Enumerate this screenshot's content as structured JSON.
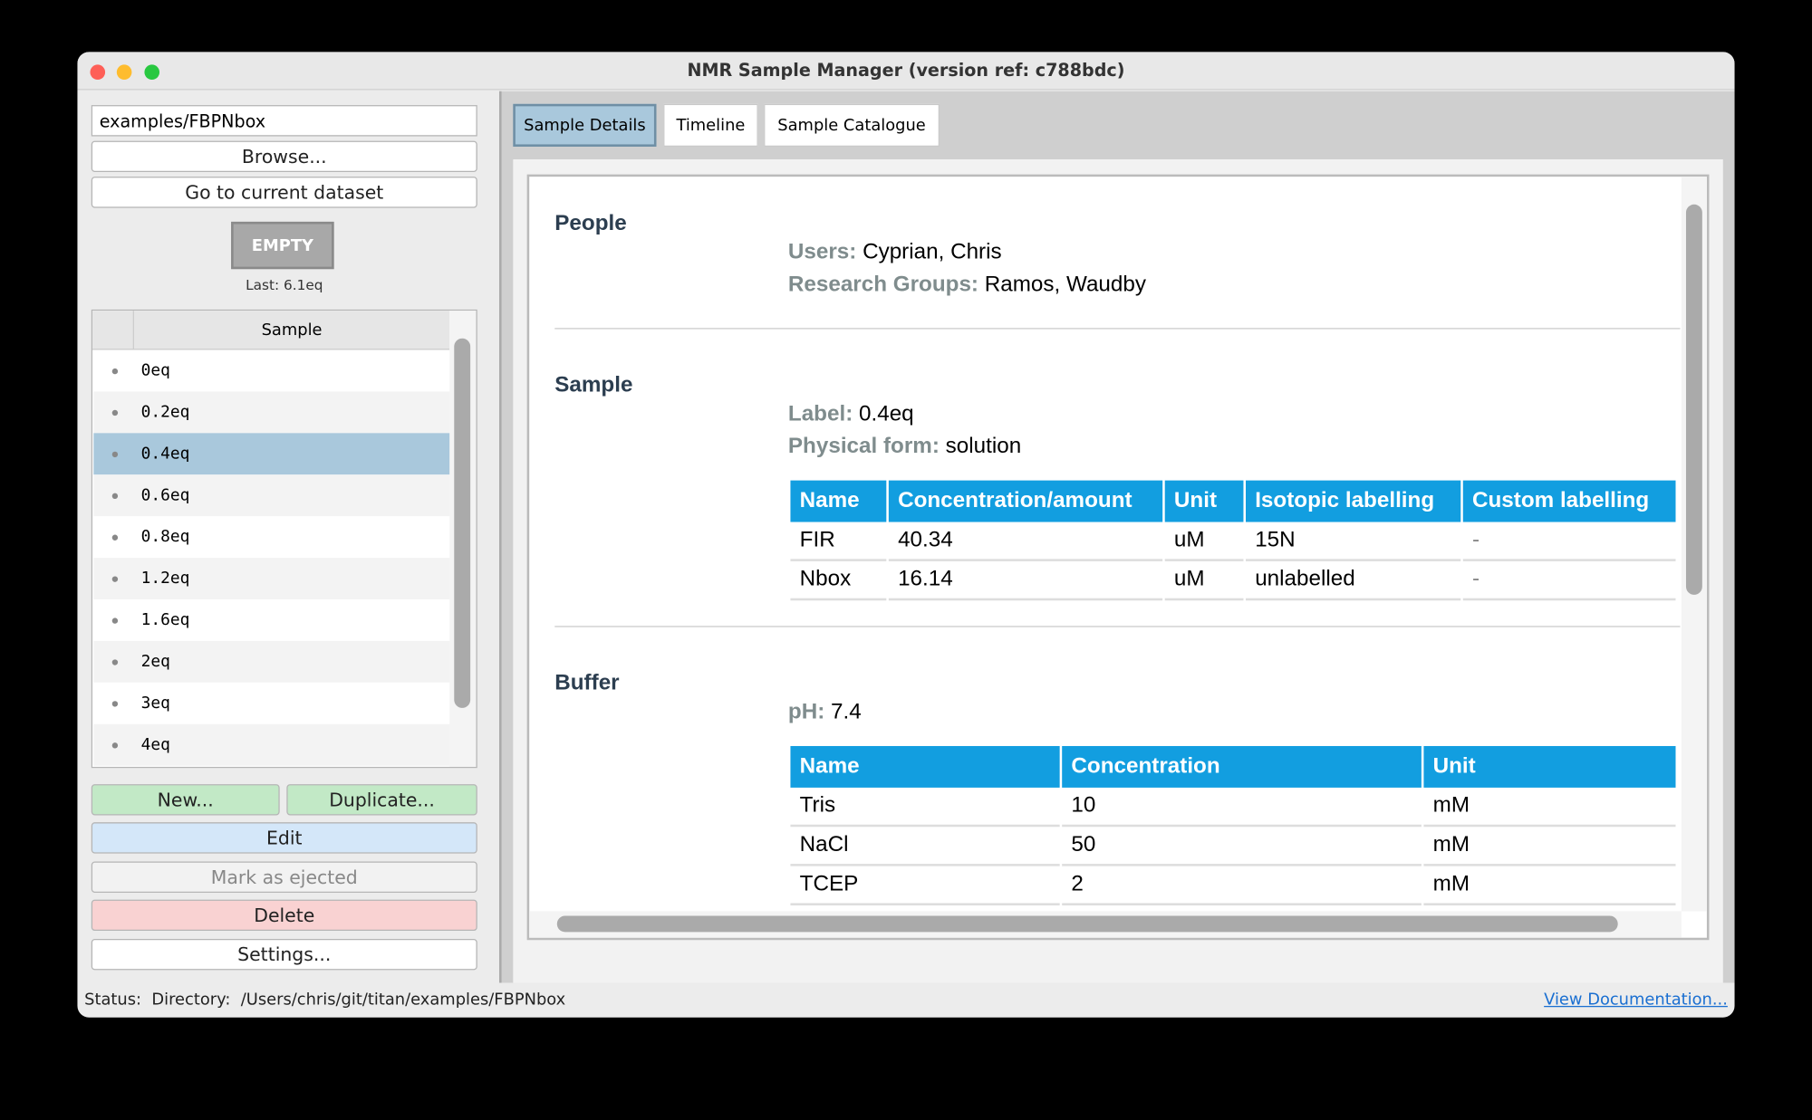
{
  "window": {
    "title": "NMR Sample Manager (version ref: c788bdc)"
  },
  "sidebar": {
    "path_field": "examples/FBPNbox",
    "browse": "Browse...",
    "go_current": "Go to current dataset",
    "state_button": "EMPTY",
    "last": "Last: 6.1eq",
    "table_header": "Sample",
    "samples": [
      "0eq",
      "0.2eq",
      "0.4eq",
      "0.6eq",
      "0.8eq",
      "1.2eq",
      "1.6eq",
      "2eq",
      "3eq",
      "4eq"
    ],
    "buttons": {
      "new": "New...",
      "duplicate": "Duplicate...",
      "edit": "Edit",
      "eject": "Mark as ejected",
      "delete": "Delete",
      "settings": "Settings..."
    }
  },
  "tabs": [
    "Sample Details",
    "Timeline",
    "Sample Catalogue"
  ],
  "details": {
    "people": {
      "heading": "People",
      "fields": [
        {
          "label": "Users:",
          "value": "Cyprian, Chris"
        },
        {
          "label": "Research Groups:",
          "value": "Ramos, Waudby"
        }
      ]
    },
    "sample": {
      "heading": "Sample",
      "fields": [
        {
          "label": "Label:",
          "value": "0.4eq"
        },
        {
          "label": "Physical form:",
          "value": "solution"
        }
      ],
      "table": {
        "columns": [
          "Name",
          "Concentration/amount",
          "Unit",
          "Isotopic labelling",
          "Custom labelling"
        ],
        "rows": [
          [
            "FIR",
            40.34,
            "uM",
            "15N",
            "-"
          ],
          [
            "Nbox",
            16.14,
            "uM",
            "unlabelled",
            "-"
          ]
        ]
      }
    },
    "buffer": {
      "heading": "Buffer",
      "fields": [
        {
          "label": "pH:",
          "value": 7.4
        }
      ],
      "table": {
        "columns": [
          "Name",
          "Concentration",
          "Unit"
        ],
        "rows": [
          [
            "Tris",
            10,
            "mM"
          ],
          [
            "NaCl",
            50,
            "mM"
          ],
          [
            "TCEP",
            2,
            "mM"
          ]
        ]
      }
    }
  },
  "status": {
    "label": "Status:",
    "text": "Directory:  /Users/chris/git/titan/examples/FBPNbox",
    "link": "View Documentation..."
  }
}
